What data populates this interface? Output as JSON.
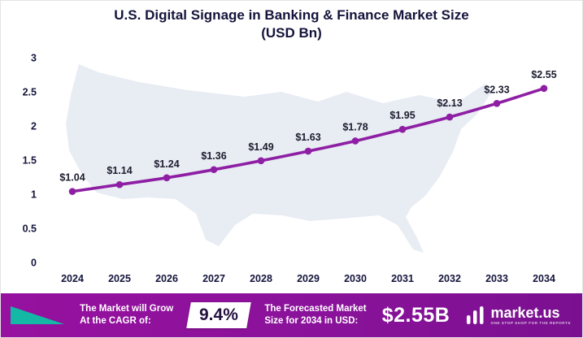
{
  "title": {
    "line1": "U.S. Digital Signage in Banking & Finance Market Size",
    "line2": "(USD Bn)"
  },
  "chart_data": {
    "type": "line",
    "title": "U.S. Digital Signage in Banking & Finance Market Size (USD Bn)",
    "categories": [
      "2024",
      "2025",
      "2026",
      "2027",
      "2028",
      "2029",
      "2030",
      "2031",
      "2032",
      "2033",
      "2034"
    ],
    "values": [
      1.04,
      1.14,
      1.24,
      1.36,
      1.49,
      1.63,
      1.78,
      1.95,
      2.13,
      2.33,
      2.55
    ],
    "point_labels": [
      "$1.04",
      "$1.14",
      "$1.24",
      "$1.36",
      "$1.49",
      "$1.63",
      "$1.78",
      "$1.95",
      "$2.13",
      "$2.33",
      "$2.55"
    ],
    "xlabel": "",
    "ylabel": "",
    "ylim": [
      0,
      3
    ],
    "yticks": [
      0,
      0.5,
      1,
      1.5,
      2,
      2.5,
      3
    ],
    "ytick_labels": [
      "0",
      "0.5",
      "1",
      "1.5",
      "2",
      "2.5",
      "3"
    ],
    "grid": false,
    "legend": "none",
    "line_color": "#8e1fa4",
    "marker_color": "#8e1fa4"
  },
  "footer": {
    "cagr_label_line1": "The Market will Grow",
    "cagr_label_line2": "At the CAGR of:",
    "cagr_value": "9.4%",
    "forecast_label_line1": "The Forecasted Market",
    "forecast_label_line2": "Size for 2034 in USD:",
    "forecast_value": "$2.55B",
    "brand": "market.us",
    "brand_tagline": "ONE STOP SHOP FOR THE REPORTS"
  },
  "colors": {
    "accent_purple": "#8e1fa4",
    "footer_gradient_start": "#96119f",
    "footer_gradient_end": "#7a1090",
    "teal_accent": "#14b9a6",
    "title_text": "#14143c",
    "map_fill": "#e8ecf3"
  }
}
